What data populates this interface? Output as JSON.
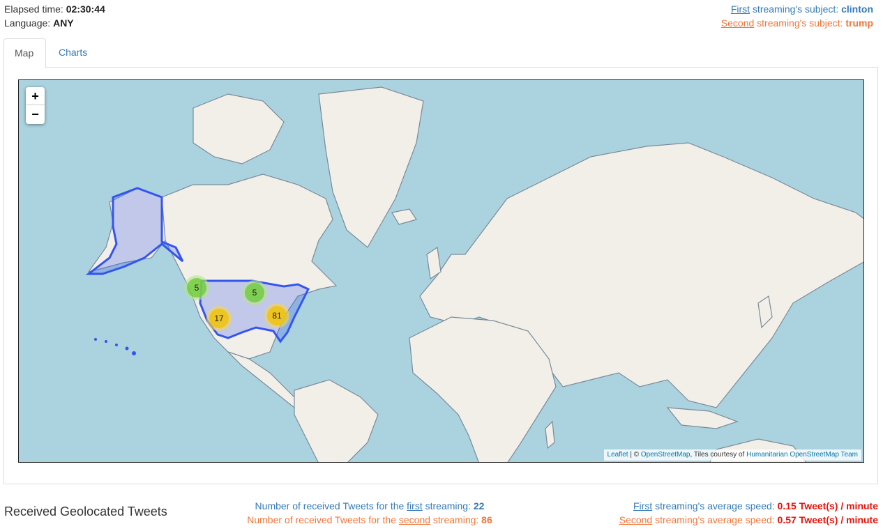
{
  "header": {
    "elapsed_label": "Elapsed time:",
    "elapsed_value": "02:30:44",
    "language_label": "Language:",
    "language_value": "ANY",
    "first_word": "First",
    "first_subject_label": " streaming's subject: ",
    "first_subject_value": "clinton",
    "second_word": "Second",
    "second_subject_label": " streaming's subject: ",
    "second_subject_value": "trump"
  },
  "tabs": [
    {
      "label": "Map",
      "active": true
    },
    {
      "label": "Charts",
      "active": false
    }
  ],
  "map": {
    "zoom_in": "+",
    "zoom_out": "−",
    "clusters": [
      {
        "count": "5",
        "size": "small"
      },
      {
        "count": "5",
        "size": "small"
      },
      {
        "count": "17",
        "size": "medium"
      },
      {
        "count": "81",
        "size": "medium"
      }
    ],
    "attribution": {
      "leaflet": "Leaflet",
      "sep": " | © ",
      "osm": "OpenStreetMap",
      "tiles": ", Tiles courtesy of ",
      "hot": "Humanitarian OpenStreetMap Team"
    },
    "colors": {
      "water": "#aad3df",
      "land": "#f2efe9",
      "highlight": "#3355ee"
    }
  },
  "footer": {
    "title": "Received Geolocated Tweets",
    "count_first_pre": "Number of received Tweets for the ",
    "count_first_word": "first",
    "count_first_post": " streaming: ",
    "count_first_value": "22",
    "count_second_pre": "Number of received Tweets for the ",
    "count_second_word": "second",
    "count_second_post": " streaming: ",
    "count_second_value": "86",
    "speed_first_word": "First",
    "speed_first_label": " streaming's average speed: ",
    "speed_first_value": "0.15 Tweet(s) / minute",
    "speed_second_word": "Second",
    "speed_second_label": " streaming's average speed: ",
    "speed_second_value": "0.57 Tweet(s) / minute"
  }
}
